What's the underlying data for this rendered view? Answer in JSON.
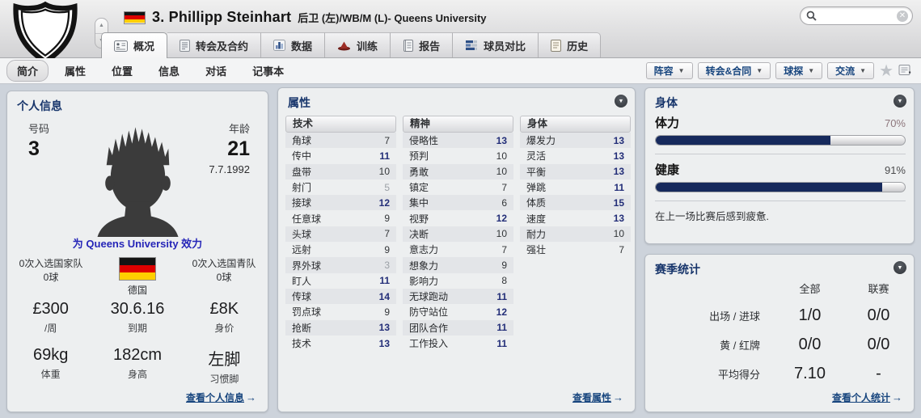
{
  "header": {
    "name": "3. Phillipp Steinhart",
    "position_club": "后卫 (左)/WB/M (L)- Queens University",
    "search": {
      "value": "",
      "placeholder": ""
    }
  },
  "tabs": [
    {
      "label": "概况",
      "icon": "overview-card-icon",
      "active": true
    },
    {
      "label": "转会及合约",
      "icon": "contract-doc-icon",
      "active": false
    },
    {
      "label": "数据",
      "icon": "stats-bars-icon",
      "active": false
    },
    {
      "label": "训练",
      "icon": "training-cone-icon",
      "active": false
    },
    {
      "label": "报告",
      "icon": "report-notebook-icon",
      "active": false
    },
    {
      "label": "球员对比",
      "icon": "compare-sliders-icon",
      "active": false
    },
    {
      "label": "历史",
      "icon": "history-scroll-icon",
      "active": false
    }
  ],
  "subtabs": [
    {
      "label": "简介",
      "active": true
    },
    {
      "label": "属性",
      "active": false
    },
    {
      "label": "位置",
      "active": false
    },
    {
      "label": "信息",
      "active": false
    },
    {
      "label": "对话",
      "active": false
    },
    {
      "label": "记事本",
      "active": false
    }
  ],
  "action_buttons": [
    {
      "label": "阵容"
    },
    {
      "label": "转会&合同"
    },
    {
      "label": "球探"
    },
    {
      "label": "交流"
    }
  ],
  "personal_info": {
    "title": "个人信息",
    "number_label": "号码",
    "number": "3",
    "age_label": "年龄",
    "age": "21",
    "birthdate": "7.7.1992",
    "plays_for": "为 Queens University 效力",
    "caps_senior_line1": "0次入选国家队",
    "caps_senior_line2": "0球",
    "nation": "德国",
    "caps_youth_line1": "0次入选国青队",
    "caps_youth_line2": "0球",
    "wage": "£300",
    "wage_label": "/周",
    "expiry": "30.6.16",
    "expiry_label": "到期",
    "value": "£8K",
    "value_label": "身价",
    "weight": "69kg",
    "weight_label": "体重",
    "height": "182cm",
    "height_label": "身高",
    "foot": "左脚",
    "foot_label": "习惯脚",
    "link": "查看个人信息",
    "link_arrow": "→"
  },
  "attributes": {
    "title": "属性",
    "link": "查看属性",
    "link_arrow": "→",
    "groups": [
      {
        "name": "技术",
        "rows": [
          [
            "角球",
            7
          ],
          [
            "传中",
            11
          ],
          [
            "盘带",
            10
          ],
          [
            "射门",
            5
          ],
          [
            "接球",
            12
          ],
          [
            "任意球",
            9
          ],
          [
            "头球",
            7
          ],
          [
            "远射",
            9
          ],
          [
            "界外球",
            3
          ],
          [
            "盯人",
            11
          ],
          [
            "传球",
            14
          ],
          [
            "罚点球",
            9
          ],
          [
            "抢断",
            13
          ],
          [
            "技术",
            13
          ]
        ]
      },
      {
        "name": "精神",
        "rows": [
          [
            "侵略性",
            13
          ],
          [
            "预判",
            10
          ],
          [
            "勇敢",
            10
          ],
          [
            "镇定",
            7
          ],
          [
            "集中",
            6
          ],
          [
            "视野",
            12
          ],
          [
            "决断",
            10
          ],
          [
            "意志力",
            7
          ],
          [
            "想象力",
            9
          ],
          [
            "影响力",
            8
          ],
          [
            "无球跑动",
            11
          ],
          [
            "防守站位",
            12
          ],
          [
            "团队合作",
            11
          ],
          [
            "工作投入",
            11
          ]
        ]
      },
      {
        "name": "身体",
        "rows": [
          [
            "爆发力",
            13
          ],
          [
            "灵活",
            13
          ],
          [
            "平衡",
            13
          ],
          [
            "弹跳",
            11
          ],
          [
            "体质",
            15
          ],
          [
            "速度",
            13
          ],
          [
            "耐力",
            10
          ],
          [
            "强壮",
            7
          ]
        ]
      }
    ]
  },
  "body_panel": {
    "title": "身体",
    "bars": [
      {
        "label": "体力",
        "percent": 70,
        "percent_text": "70%",
        "percent_color": "#8d767c"
      },
      {
        "label": "健康",
        "percent": 91,
        "percent_text": "91%",
        "percent_color": "#4b4b4d"
      }
    ],
    "fill_color": "#16295c",
    "note": "在上一场比赛后感到疲惫."
  },
  "season_stats": {
    "title": "赛季统计",
    "columns": [
      "全部",
      "联赛"
    ],
    "rows": [
      {
        "label": "出场 / 进球",
        "values": [
          "1/0",
          "0/0"
        ]
      },
      {
        "label": "黄 / 红牌",
        "values": [
          "0/0",
          "0/0"
        ]
      },
      {
        "label": "平均得分",
        "values": [
          "7.10",
          "-"
        ]
      }
    ],
    "link": "查看个人统计",
    "link_arrow": "→"
  },
  "colors": {
    "accent_navy": "#17356b",
    "link_blue": "#17457e",
    "attr_high": "#232e78",
    "flag_black": "#141414",
    "flag_red": "#dd0000",
    "flag_gold": "#ffce00"
  }
}
